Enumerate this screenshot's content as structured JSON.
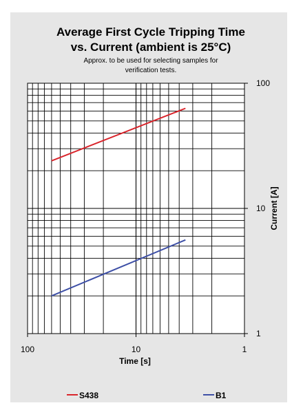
{
  "chart_data": {
    "type": "line",
    "title_line1": "Average First Cycle Tripping Time",
    "title_line2": "vs. Current (ambient is 25°C)",
    "subtitle_line1": "Approx. to be used for selecting samples for",
    "subtitle_line2": "verification tests.",
    "xlabel": "Time [s]",
    "ylabel": "Current [A]",
    "x_scale": "log",
    "x_reversed": true,
    "y_scale": "log",
    "xlim": [
      100,
      1
    ],
    "ylim": [
      1,
      100
    ],
    "x_ticks": [
      "100",
      "10",
      "1"
    ],
    "y_ticks": [
      "1",
      "10",
      "100"
    ],
    "grid": true,
    "legend_position": "bottom",
    "series": [
      {
        "name": "S438",
        "color": "#d9242b",
        "points": [
          {
            "x": 60,
            "y": 24
          },
          {
            "x": 3.5,
            "y": 63
          }
        ]
      },
      {
        "name": "B1",
        "color": "#3d4fa6",
        "points": [
          {
            "x": 60,
            "y": 2
          },
          {
            "x": 3.5,
            "y": 5.6
          }
        ]
      }
    ]
  }
}
